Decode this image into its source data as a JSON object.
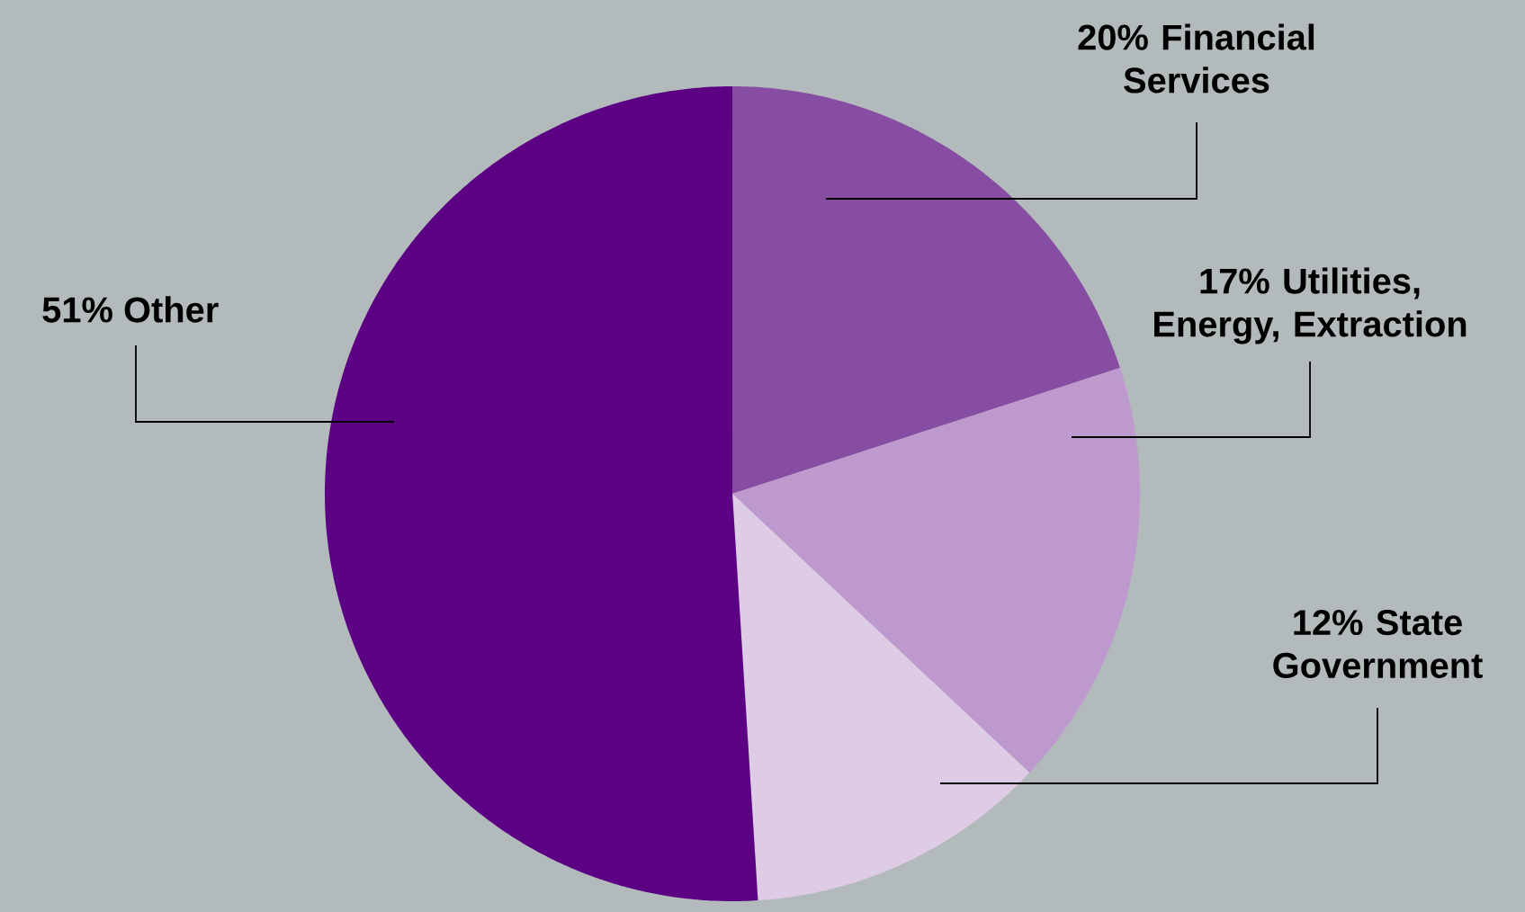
{
  "chart_data": {
    "type": "pie",
    "categories": [
      "Financial Services",
      "Utilities, Energy, Extraction",
      "State Government",
      "Other"
    ],
    "values": [
      20,
      17,
      12,
      51
    ],
    "value_labels": [
      "20%",
      "17%",
      "12%",
      "51%"
    ],
    "colors": [
      "#874da3",
      "#be99ce",
      "#decbe6",
      "#5c0084"
    ]
  }
}
